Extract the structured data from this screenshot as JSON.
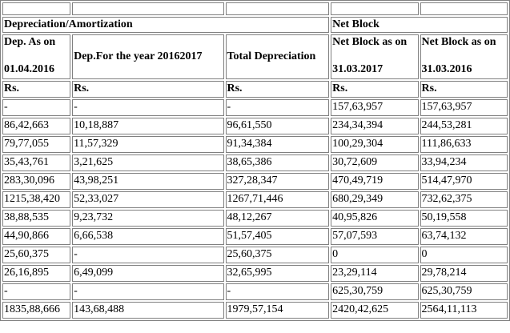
{
  "groups": {
    "depreciation": "Depreciation/Amortization",
    "net_block": "Net Block"
  },
  "headers": {
    "dep_as_on_line1": "Dep. As on",
    "dep_as_on_line2": "01.04.2016",
    "dep_for_year": "Dep.For the year 20162017",
    "total_depreciation": "Total Depreciation",
    "nb_2017_line1": "Net Block as on",
    "nb_2017_line2": "31.03.2017",
    "nb_2016_line1": "Net Block as on",
    "nb_2016_line2": "31.03.2016"
  },
  "units": [
    "Rs.",
    "Rs.",
    "Rs.",
    "Rs.",
    "Rs."
  ],
  "rows": [
    [
      "-",
      "-",
      "-",
      "157,63,957",
      "157,63,957"
    ],
    [
      "86,42,663",
      "10,18,887",
      "96,61,550",
      "234,34,394",
      "244,53,281"
    ],
    [
      "79,77,055",
      "11,57,329",
      "91,34,384",
      "100,29,304",
      "111,86,633"
    ],
    [
      "35,43,761",
      "3,21,625",
      "38,65,386",
      "30,72,609",
      "33,94,234"
    ],
    [
      "283,30,096",
      "43,98,251",
      "327,28,347",
      "470,49,719",
      "514,47,970"
    ],
    [
      "1215,38,420",
      "52,33,027",
      "1267,71,446",
      "680,29,349",
      "732,62,375"
    ],
    [
      "38,88,535",
      "9,23,732",
      "48,12,267",
      "40,95,826",
      "50,19,558"
    ],
    [
      "44,90,866",
      "6,66,538",
      "51,57,405",
      "57,07,593",
      "63,74,132"
    ],
    [
      "25,60,375",
      "-",
      "25,60,375",
      "0",
      "0"
    ],
    [
      "26,16,895",
      "6,49,099",
      "32,65,995",
      "23,29,114",
      "29,78,214"
    ],
    [
      "-",
      "-",
      "-",
      "625,30,759",
      "625,30,759"
    ],
    [
      "1835,88,666",
      "143,68,488",
      "1979,57,154",
      "2420,42,625",
      "2564,11,113"
    ]
  ]
}
